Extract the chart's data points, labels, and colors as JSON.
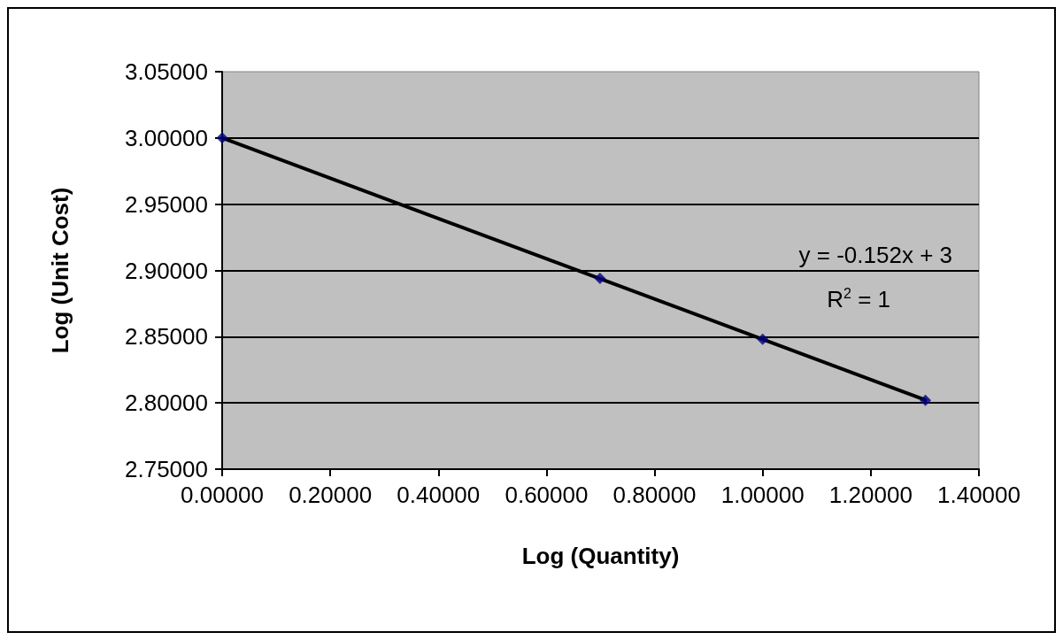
{
  "chart_data": {
    "type": "scatter",
    "xlabel": "Log (Quantity)",
    "ylabel": "Log (Unit Cost)",
    "x": [
      0,
      0.699,
      1.0,
      1.301
    ],
    "series": [
      {
        "color": "#000080",
        "values": [
          3.0,
          2.894,
          2.848,
          2.802
        ],
        "marker": "diamond"
      },
      {
        "type": "line",
        "color": "#000000",
        "x": [
          0,
          1.301
        ],
        "values": [
          3.0,
          2.8022
        ],
        "marker": "none"
      }
    ],
    "xlim": [
      0,
      1.4
    ],
    "ylim": [
      2.75,
      3.05
    ],
    "xticks": [
      {
        "value": 0,
        "label": "0.00000"
      },
      {
        "value": 0.2,
        "label": "0.20000"
      },
      {
        "value": 0.4,
        "label": "0.40000"
      },
      {
        "value": 0.6,
        "label": "0.60000"
      },
      {
        "value": 0.8,
        "label": "0.80000"
      },
      {
        "value": 1.0,
        "label": "1.00000"
      },
      {
        "value": 1.2,
        "label": "1.20000"
      },
      {
        "value": 1.4,
        "label": "1.40000"
      }
    ],
    "yticks": [
      {
        "value": 2.75,
        "label": "2.75000"
      },
      {
        "value": 2.8,
        "label": "2.80000"
      },
      {
        "value": 2.85,
        "label": "2.85000"
      },
      {
        "value": 2.9,
        "label": "2.90000"
      },
      {
        "value": 2.95,
        "label": "2.95000"
      },
      {
        "value": 3.0,
        "label": "3.00000"
      },
      {
        "value": 3.05,
        "label": "3.05000"
      }
    ],
    "grid": "y",
    "annotations": [
      "y = -0.152x + 3",
      "R$^{2}$ = 1"
    ]
  }
}
